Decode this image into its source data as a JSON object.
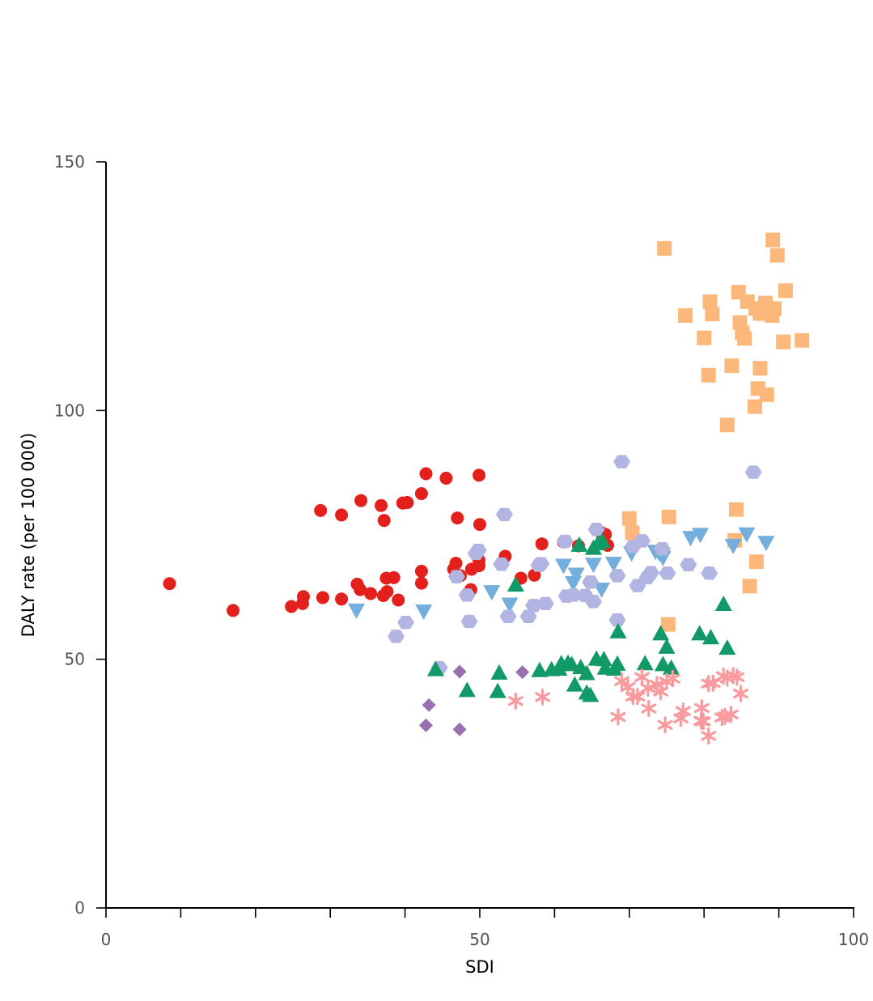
{
  "chart_data": {
    "type": "scatter",
    "title": "",
    "xlabel": "SDI",
    "ylabel": "DALY rate (per 100 000)",
    "xlim": [
      0,
      100
    ],
    "ylim": [
      0,
      150
    ],
    "x_ticks": [
      0,
      10,
      20,
      30,
      40,
      50,
      60,
      70,
      80,
      90,
      100
    ],
    "x_tick_labels": [
      {
        "value": 0,
        "label": "0"
      },
      {
        "value": 50,
        "label": "50"
      },
      {
        "value": 100,
        "label": "100"
      }
    ],
    "y_ticks": [
      0,
      50,
      100,
      150
    ],
    "y_tick_labels": [
      {
        "value": 0,
        "label": "0"
      },
      {
        "value": 50,
        "label": "50"
      },
      {
        "value": 100,
        "label": "100"
      },
      {
        "value": 150,
        "label": "150"
      }
    ],
    "grid": false,
    "legend": "none",
    "series": [
      {
        "color": "#e3201c",
        "marker": "circle",
        "points": [
          [
            8.5,
            65.2
          ],
          [
            17,
            59.8
          ],
          [
            24.8,
            60.6
          ],
          [
            26.3,
            61.2
          ],
          [
            26.4,
            62.6
          ],
          [
            29,
            62.4
          ],
          [
            31.5,
            62.1
          ],
          [
            33.6,
            65.1
          ],
          [
            34,
            64
          ],
          [
            35.4,
            63.2
          ],
          [
            37.1,
            62.8
          ],
          [
            37.6,
            63.6
          ],
          [
            39.1,
            61.9
          ],
          [
            38.5,
            66.4
          ],
          [
            37.5,
            66.3
          ],
          [
            37.2,
            77.9
          ],
          [
            36.8,
            80.9
          ],
          [
            34.1,
            81.9
          ],
          [
            31.5,
            79
          ],
          [
            28.7,
            79.9
          ],
          [
            39.7,
            81.4
          ],
          [
            40.3,
            81.5
          ],
          [
            42.2,
            83.3
          ],
          [
            42.8,
            87.3
          ],
          [
            45.5,
            86.4
          ],
          [
            47,
            78.4
          ],
          [
            50,
            77.1
          ],
          [
            49.9,
            87
          ],
          [
            42.2,
            65.3
          ],
          [
            42.2,
            67.7
          ],
          [
            46.5,
            68.1
          ],
          [
            46.8,
            69.3
          ],
          [
            47.4,
            66.8
          ],
          [
            48.9,
            68.1
          ],
          [
            49.9,
            68.8
          ],
          [
            49.9,
            69.9
          ],
          [
            48.8,
            64
          ],
          [
            53.4,
            70.7
          ],
          [
            55.5,
            66.3
          ],
          [
            57.3,
            66.9
          ],
          [
            58.3,
            73.2
          ],
          [
            61.2,
            73.6
          ],
          [
            63.2,
            72.8
          ],
          [
            66.2,
            75.5
          ],
          [
            66.8,
            75.1
          ],
          [
            67.1,
            72.9
          ]
        ]
      },
      {
        "color": "#fbb87a",
        "marker": "square",
        "points": [
          [
            74.7,
            132.6
          ],
          [
            77.5,
            119.1
          ],
          [
            80,
            114.6
          ],
          [
            80.6,
            107.1
          ],
          [
            80.8,
            121.9
          ],
          [
            81.1,
            119.4
          ],
          [
            83.1,
            97.1
          ],
          [
            83.7,
            109
          ],
          [
            84.6,
            123.8
          ],
          [
            84.8,
            117.7
          ],
          [
            85.1,
            115.6
          ],
          [
            85.4,
            114.5
          ],
          [
            85.8,
            121.9
          ],
          [
            86.8,
            100.8
          ],
          [
            87.2,
            104.4
          ],
          [
            87.5,
            108.5
          ],
          [
            86.9,
            120.5
          ],
          [
            87.5,
            119.5
          ],
          [
            88.2,
            121.6
          ],
          [
            88.4,
            103.2
          ],
          [
            88.7,
            120
          ],
          [
            89.1,
            119.1
          ],
          [
            89.4,
            120.5
          ],
          [
            89.2,
            134.3
          ],
          [
            89.8,
            131.2
          ],
          [
            90.6,
            113.8
          ],
          [
            90.9,
            124.1
          ],
          [
            93.1,
            114.1
          ],
          [
            70,
            78.3
          ],
          [
            70.4,
            75.4
          ],
          [
            75.3,
            78.6
          ],
          [
            84.3,
            80.1
          ],
          [
            84.1,
            73.9
          ],
          [
            86.1,
            64.7
          ],
          [
            87,
            69.6
          ],
          [
            75.2,
            57
          ]
        ]
      },
      {
        "color": "#74aedc",
        "marker": "triangle-down",
        "points": [
          [
            33.5,
            59.9
          ],
          [
            42.5,
            59.7
          ],
          [
            51.6,
            63.6
          ],
          [
            54,
            61.1
          ],
          [
            61.2,
            68.9
          ],
          [
            62.5,
            65.4
          ],
          [
            62.9,
            67.1
          ],
          [
            65.2,
            69.1
          ],
          [
            66.3,
            64.1
          ],
          [
            67.9,
            69.3
          ],
          [
            70.3,
            71.4
          ],
          [
            73.5,
            71.7
          ],
          [
            74,
            71.4
          ],
          [
            74.5,
            70.5
          ],
          [
            78.2,
            74.5
          ],
          [
            79.5,
            75.1
          ],
          [
            83.9,
            72.9
          ],
          [
            85.7,
            75.2
          ],
          [
            88.3,
            73.5
          ]
        ]
      },
      {
        "color": "#b2b5e1",
        "marker": "hexagon",
        "points": [
          [
            38.8,
            54.6
          ],
          [
            40.1,
            57.4
          ],
          [
            44.6,
            48.3
          ],
          [
            46.9,
            66.6
          ],
          [
            48.3,
            62.9
          ],
          [
            48.6,
            57.6
          ],
          [
            49.5,
            71.3
          ],
          [
            49.8,
            71.9
          ],
          [
            52.9,
            69.1
          ],
          [
            53.3,
            79.1
          ],
          [
            53.8,
            58.6
          ],
          [
            56.5,
            58.6
          ],
          [
            57.2,
            60.8
          ],
          [
            57.9,
            68.9
          ],
          [
            58.2,
            69.2
          ],
          [
            58.8,
            61.2
          ],
          [
            61.4,
            73.7
          ],
          [
            61.6,
            62.7
          ],
          [
            62.5,
            62.9
          ],
          [
            64.1,
            62.8
          ],
          [
            64.8,
            65.5
          ],
          [
            65.2,
            61.6
          ],
          [
            65.6,
            76.1
          ],
          [
            68.4,
            66.8
          ],
          [
            68.4,
            57.9
          ],
          [
            69,
            89.7
          ],
          [
            70.5,
            72.7
          ],
          [
            71.1,
            64.8
          ],
          [
            71.7,
            73.8
          ],
          [
            72.4,
            66.4
          ],
          [
            72.9,
            67.4
          ],
          [
            74.4,
            72.2
          ],
          [
            75.1,
            67.3
          ],
          [
            77.9,
            69
          ],
          [
            80.7,
            67.3
          ],
          [
            86.6,
            87.6
          ]
        ]
      },
      {
        "color": "#119a67",
        "marker": "triangle-up",
        "points": [
          [
            44.1,
            47.9
          ],
          [
            48.3,
            43.7
          ],
          [
            52.4,
            43.5
          ],
          [
            52.6,
            47.2
          ],
          [
            54.8,
            64.9
          ],
          [
            58,
            47.7
          ],
          [
            59.6,
            47.9
          ],
          [
            60.6,
            48
          ],
          [
            60.9,
            49.1
          ],
          [
            61.8,
            49.2
          ],
          [
            62.3,
            48.9
          ],
          [
            62.7,
            44.8
          ],
          [
            63.3,
            72.9
          ],
          [
            63.5,
            48.3
          ],
          [
            64.3,
            43.2
          ],
          [
            64.8,
            42.7
          ],
          [
            64.3,
            47.1
          ],
          [
            65.2,
            72.3
          ],
          [
            65.8,
            73.2
          ],
          [
            66.4,
            73.7
          ],
          [
            65.6,
            50
          ],
          [
            66.6,
            49.9
          ],
          [
            66.8,
            48.2
          ],
          [
            68,
            48
          ],
          [
            68.4,
            49
          ],
          [
            68.5,
            55.5
          ],
          [
            72.1,
            49.1
          ],
          [
            74.2,
            55.1
          ],
          [
            74.5,
            48.9
          ],
          [
            75,
            52.4
          ],
          [
            75.6,
            48.2
          ],
          [
            79.4,
            55.1
          ],
          [
            80.9,
            54.3
          ],
          [
            82.6,
            61
          ],
          [
            83.1,
            52.2
          ]
        ]
      },
      {
        "color": "#f89a9e",
        "marker": "asterisk",
        "points": [
          [
            54.8,
            41.6
          ],
          [
            58.4,
            42.4
          ],
          [
            68.5,
            38.4
          ],
          [
            69,
            45.6
          ],
          [
            69.8,
            44.4
          ],
          [
            70.5,
            42.5
          ],
          [
            71.1,
            42.5
          ],
          [
            71.7,
            46.4
          ],
          [
            72.6,
            40.1
          ],
          [
            72.5,
            44.2
          ],
          [
            73.7,
            44.9
          ],
          [
            74.2,
            43.5
          ],
          [
            74.8,
            36.8
          ],
          [
            75,
            45.5
          ],
          [
            75.8,
            46.1
          ],
          [
            76.9,
            38.1
          ],
          [
            77.2,
            39.6
          ],
          [
            79.7,
            40.2
          ],
          [
            79.6,
            37.6
          ],
          [
            79.9,
            37.5
          ],
          [
            80.6,
            45.1
          ],
          [
            80.6,
            34.6
          ],
          [
            81.2,
            45.2
          ],
          [
            82.4,
            38.3
          ],
          [
            82.6,
            46.6
          ],
          [
            83.1,
            46.2
          ],
          [
            83.9,
            46.7
          ],
          [
            83.6,
            38.9
          ],
          [
            84.4,
            46.4
          ],
          [
            84.9,
            43.1
          ],
          [
            82.8,
            38.5
          ]
        ]
      },
      {
        "color": "#9a6fb1",
        "marker": "diamond",
        "points": [
          [
            42.8,
            36.7
          ],
          [
            43.2,
            40.8
          ],
          [
            47.3,
            47.5
          ],
          [
            47.3,
            35.9
          ],
          [
            55.7,
            47.4
          ]
        ]
      }
    ]
  }
}
